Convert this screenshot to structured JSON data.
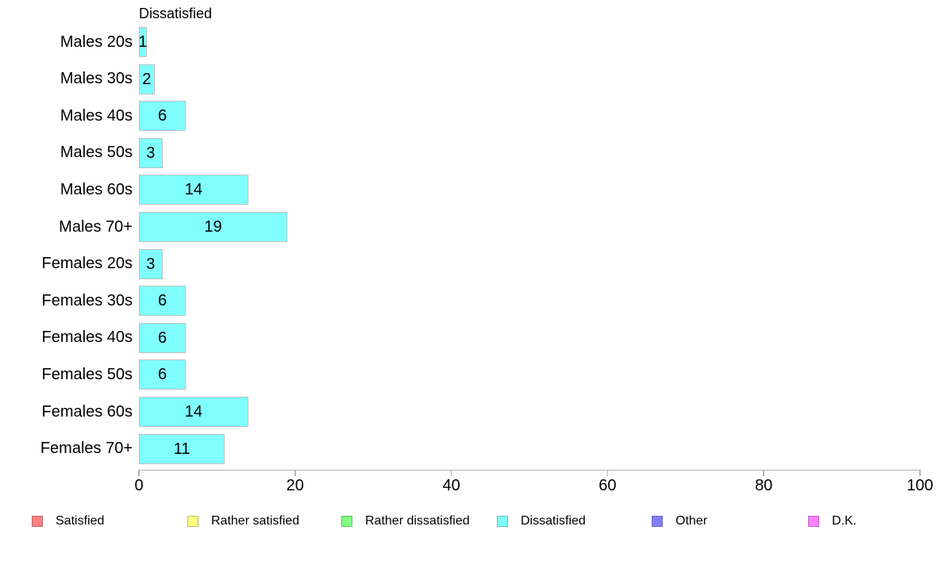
{
  "chart_data": {
    "type": "bar",
    "orientation": "horizontal",
    "title": "Dissatisfied",
    "categories": [
      "Males 20s",
      "Males 30s",
      "Males 40s",
      "Males 50s",
      "Males 60s",
      "Males 70+",
      "Females 20s",
      "Females 30s",
      "Females 40s",
      "Females 50s",
      "Females 60s",
      "Females 70+"
    ],
    "values": [
      1,
      2,
      6,
      3,
      14,
      19,
      3,
      6,
      6,
      6,
      14,
      11
    ],
    "xlabel": "",
    "ylabel": "",
    "xlim": [
      0,
      100
    ],
    "x_ticks": [
      0,
      20,
      40,
      60,
      80,
      100
    ],
    "grid": false,
    "bar_color": "#80FFFF",
    "bar_border_color": "#C0C0C0",
    "axis_color": "#B3B3B3",
    "text_color": "#000000",
    "legend_position": "bottom",
    "legend": [
      {
        "label": "Satisfied",
        "color": "#FF8080",
        "border": "#BE6A6A"
      },
      {
        "label": "Rather satisfied",
        "color": "#FFFF80",
        "border": "#BEBE6A"
      },
      {
        "label": "Rather dissatisfied",
        "color": "#80FF80",
        "border": "#6ABE6A"
      },
      {
        "label": "Dissatisfied",
        "color": "#80FFFF",
        "border": "#6ABEBE"
      },
      {
        "label": "Other",
        "color": "#8080FF",
        "border": "#6A6ABE"
      },
      {
        "label": "D.K.",
        "color": "#FF80FF",
        "border": "#BE6ABE"
      }
    ]
  }
}
